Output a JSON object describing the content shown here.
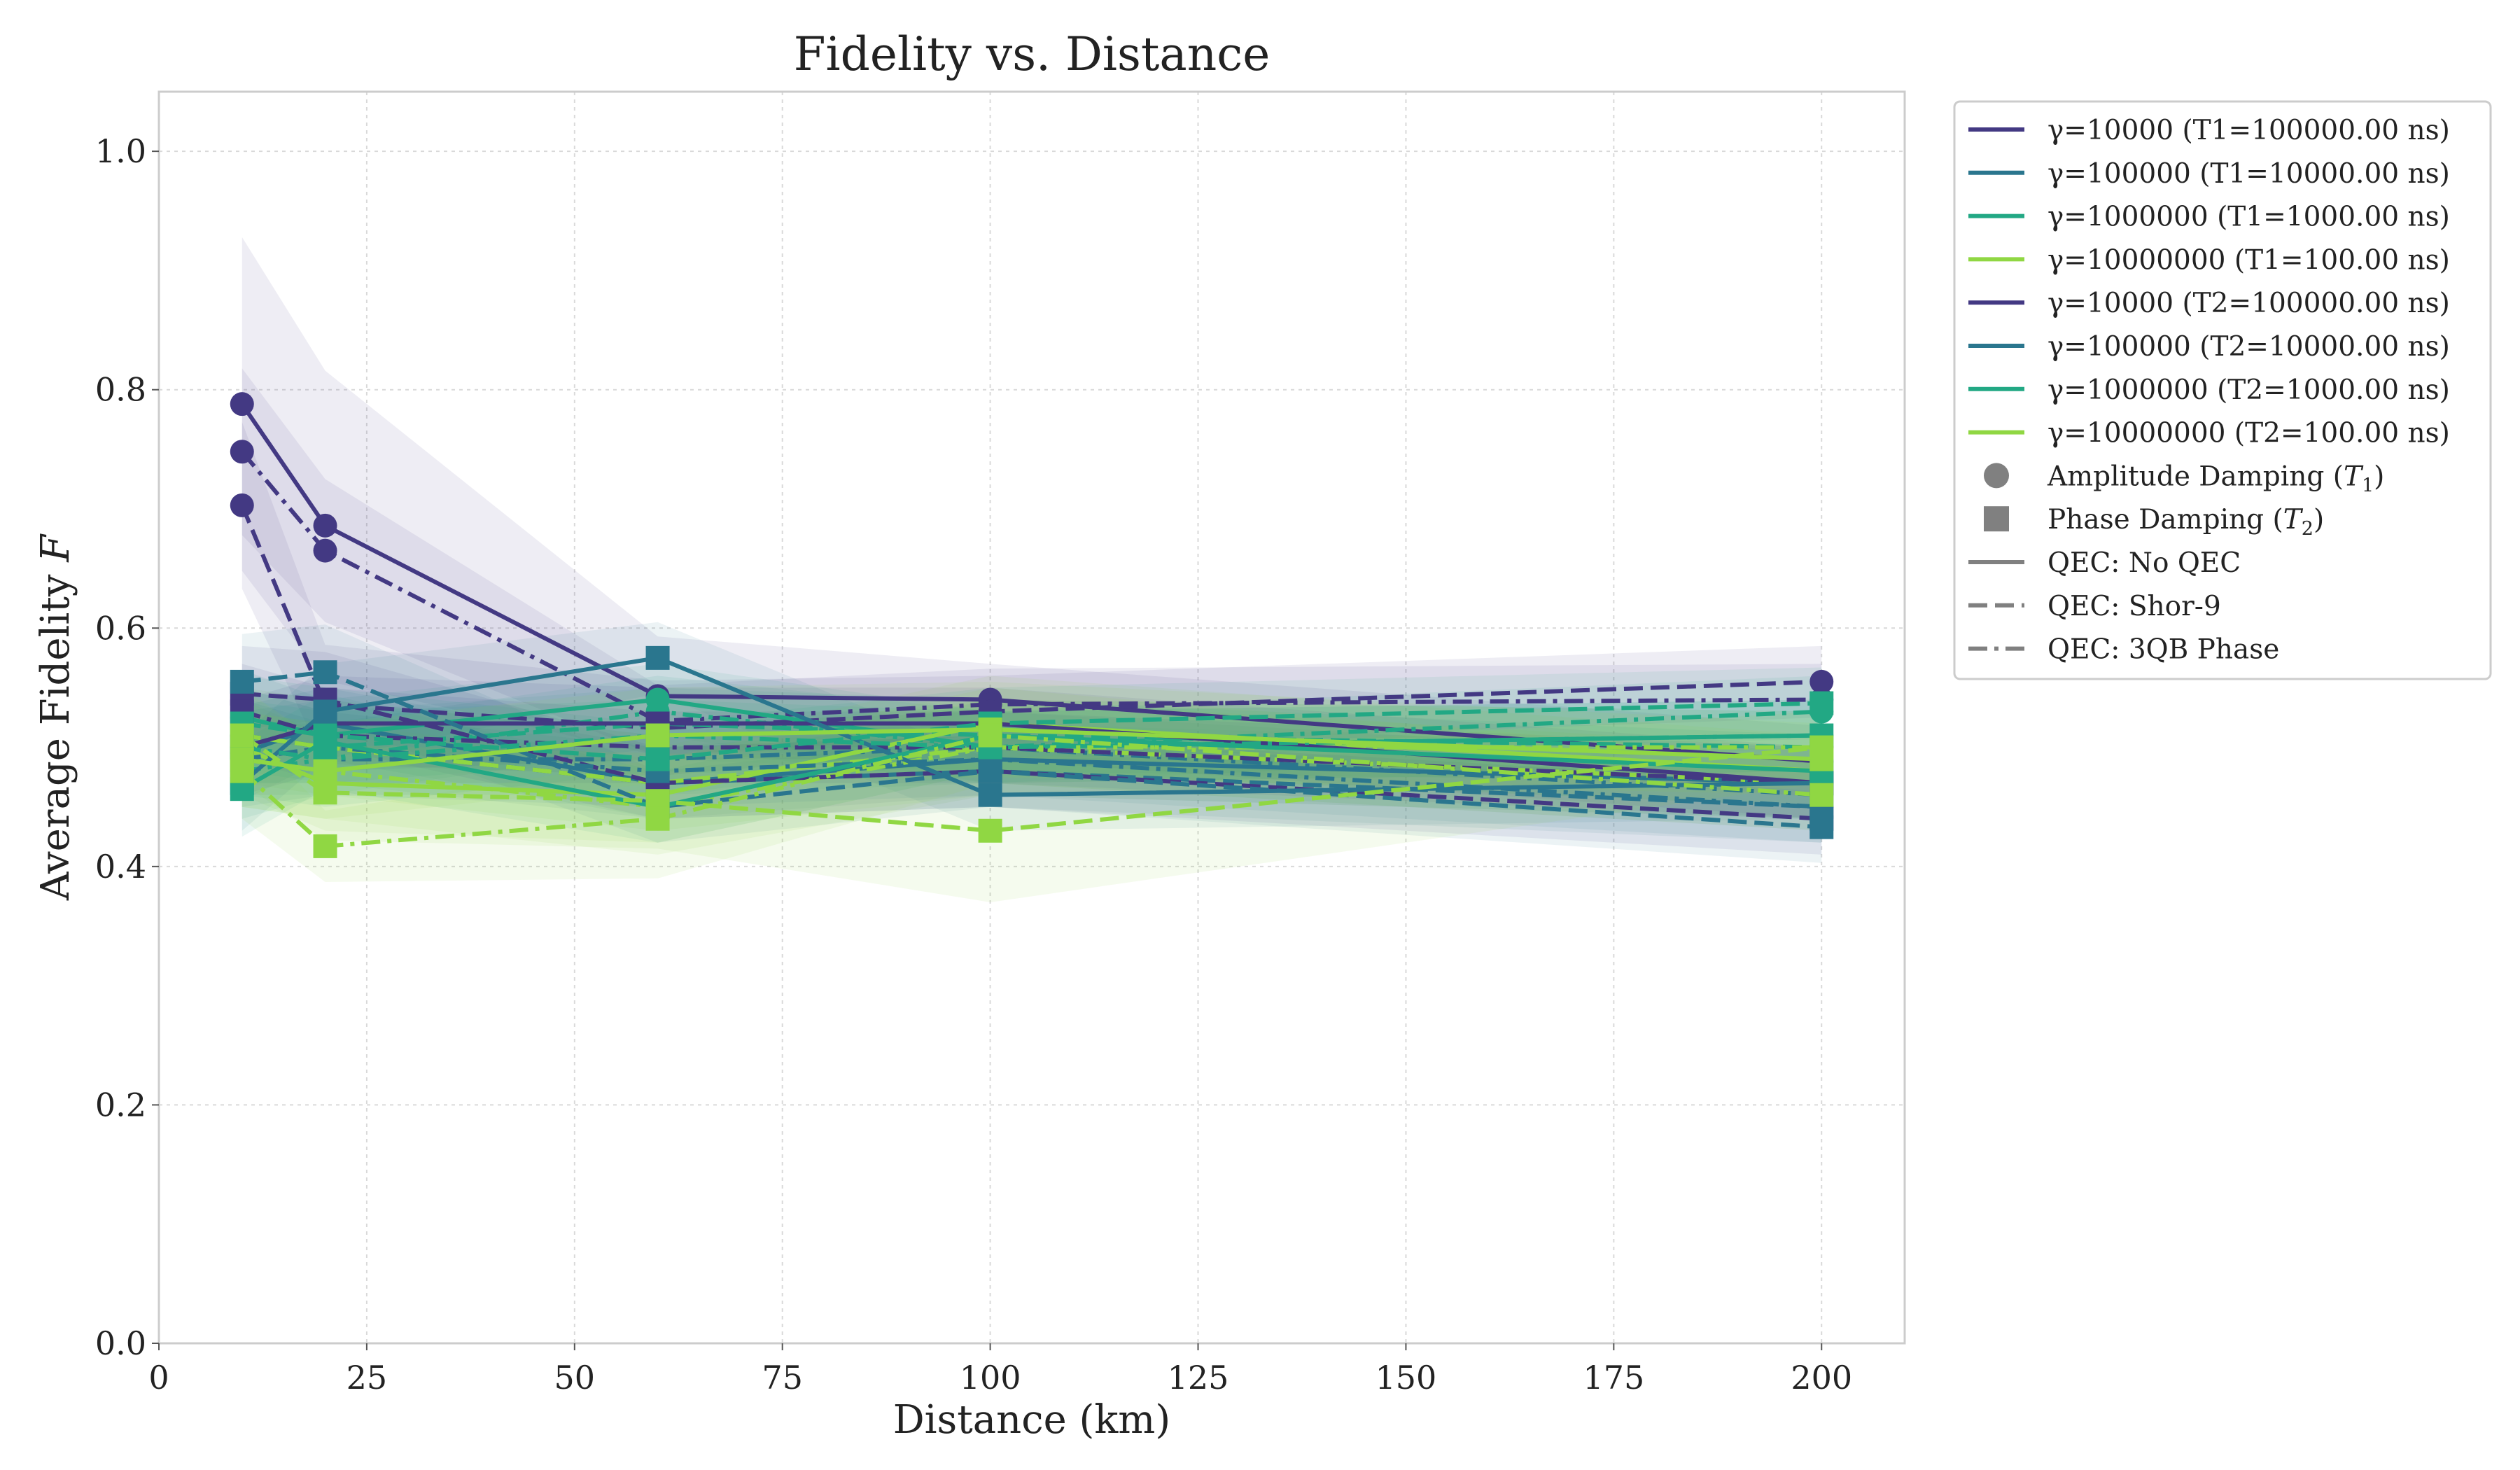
{
  "chart_data": {
    "type": "line",
    "title": "Fidelity vs. Distance",
    "xlabel": "Distance (km)",
    "ylabel_main": "Average Fidelity ",
    "ylabel_var": "F",
    "xlim": [
      0,
      210
    ],
    "ylim": [
      0.0,
      1.05
    ],
    "xticks": [
      0,
      25,
      50,
      75,
      100,
      125,
      150,
      175,
      200
    ],
    "xtick_labels": [
      "0",
      "25",
      "50",
      "75",
      "100",
      "125",
      "150",
      "175",
      "200"
    ],
    "yticks": [
      0.0,
      0.2,
      0.4,
      0.6,
      0.8,
      1.0
    ],
    "ytick_labels": [
      "0.0",
      "0.2",
      "0.4",
      "0.6",
      "0.8",
      "1.0"
    ],
    "grid": true,
    "legend_placement": "outside-upper-right",
    "x": [
      10,
      20,
      60,
      100,
      200
    ],
    "colors": {
      "gamma_10000": "#433983",
      "gamma_100000": "#2a768e",
      "gamma_1000000": "#22a884",
      "gamma_10000000": "#90d743",
      "legend_marker": "#808080"
    },
    "legend": [
      {
        "label": "γ=10000 (T1=100000.00 ns)",
        "kind": "line",
        "color": "gamma_10000"
      },
      {
        "label": "γ=100000 (T1=10000.00 ns)",
        "kind": "line",
        "color": "gamma_100000"
      },
      {
        "label": "γ=1000000 (T1=1000.00 ns)",
        "kind": "line",
        "color": "gamma_1000000"
      },
      {
        "label": "γ=10000000 (T1=100.00 ns)",
        "kind": "line",
        "color": "gamma_10000000"
      },
      {
        "label": "γ=10000 (T2=100000.00 ns)",
        "kind": "line",
        "color": "gamma_10000"
      },
      {
        "label": "γ=100000 (T2=10000.00 ns)",
        "kind": "line",
        "color": "gamma_100000"
      },
      {
        "label": "γ=1000000 (T2=1000.00 ns)",
        "kind": "line",
        "color": "gamma_1000000"
      },
      {
        "label": "γ=10000000 (T2=100.00 ns)",
        "kind": "line",
        "color": "gamma_10000000"
      },
      {
        "label": "Amplitude Damping (",
        "label_var": "T",
        "label_sub": "1",
        "label_end": ")",
        "kind": "circle"
      },
      {
        "label": "Phase Damping (",
        "label_var": "T",
        "label_sub": "2",
        "label_end": ")",
        "kind": "square"
      },
      {
        "label": "QEC: No QEC",
        "kind": "style",
        "dash": "solid"
      },
      {
        "label": "QEC: Shor-9",
        "kind": "style",
        "dash": "dashed"
      },
      {
        "label": "QEC: 3QB Phase",
        "kind": "style",
        "dash": "dashdot"
      }
    ],
    "series": [
      {
        "color": "gamma_10000",
        "marker": "circle",
        "dash": "solid",
        "values": [
          0.788,
          0.686,
          0.543,
          0.54,
          0.488
        ],
        "band": [
          0.14,
          0.13,
          0.05,
          0.03,
          0.03
        ]
      },
      {
        "color": "gamma_10000",
        "marker": "circle",
        "dash": "dashdot",
        "values": [
          0.748,
          0.665,
          0.522,
          0.536,
          0.54
        ],
        "band": [
          0.07,
          0.06,
          0.03,
          0.03,
          0.03
        ]
      },
      {
        "color": "gamma_10000",
        "marker": "circle",
        "dash": "dashed",
        "values": [
          0.703,
          0.536,
          0.516,
          0.53,
          0.555
        ],
        "band": [
          0.07,
          0.05,
          0.04,
          0.03,
          0.03
        ]
      },
      {
        "color": "gamma_100000",
        "marker": "circle",
        "dash": "solid",
        "values": [
          0.495,
          0.52,
          0.47,
          0.49,
          0.47
        ],
        "band": [
          0.04,
          0.03,
          0.03,
          0.03,
          0.03
        ]
      },
      {
        "color": "gamma_100000",
        "marker": "circle",
        "dash": "dashed",
        "values": [
          0.51,
          0.5,
          0.47,
          0.48,
          0.45
        ],
        "band": [
          0.04,
          0.03,
          0.03,
          0.03,
          0.03
        ]
      },
      {
        "color": "gamma_100000",
        "marker": "circle",
        "dash": "dashdot",
        "values": [
          0.5,
          0.49,
          0.49,
          0.5,
          0.46
        ],
        "band": [
          0.04,
          0.03,
          0.03,
          0.03,
          0.03
        ]
      },
      {
        "color": "gamma_1000000",
        "marker": "circle",
        "dash": "solid",
        "values": [
          0.525,
          0.51,
          0.54,
          0.5,
          0.51
        ],
        "band": [
          0.04,
          0.03,
          0.03,
          0.03,
          0.03
        ]
      },
      {
        "color": "gamma_1000000",
        "marker": "circle",
        "dash": "dashed",
        "values": [
          0.51,
          0.5,
          0.52,
          0.51,
          0.5
        ],
        "band": [
          0.04,
          0.03,
          0.03,
          0.03,
          0.03
        ]
      },
      {
        "color": "gamma_1000000",
        "marker": "circle",
        "dash": "dashdot",
        "values": [
          0.48,
          0.49,
          0.53,
          0.5,
          0.53
        ],
        "band": [
          0.04,
          0.03,
          0.03,
          0.03,
          0.03
        ]
      },
      {
        "color": "gamma_10000000",
        "marker": "circle",
        "dash": "solid",
        "values": [
          0.5,
          0.47,
          0.46,
          0.52,
          0.48
        ],
        "band": [
          0.04,
          0.04,
          0.04,
          0.04,
          0.03
        ]
      },
      {
        "color": "gamma_10000000",
        "marker": "circle",
        "dash": "dashed",
        "values": [
          0.51,
          0.5,
          0.47,
          0.5,
          0.47
        ],
        "band": [
          0.04,
          0.04,
          0.04,
          0.04,
          0.03
        ]
      },
      {
        "color": "gamma_10000000",
        "marker": "circle",
        "dash": "dashdot",
        "values": [
          0.49,
          0.48,
          0.45,
          0.5,
          0.5
        ],
        "band": [
          0.04,
          0.04,
          0.04,
          0.04,
          0.03
        ]
      },
      {
        "color": "gamma_10000",
        "marker": "square",
        "dash": "solid",
        "values": [
          0.5,
          0.52,
          0.52,
          0.52,
          0.47
        ],
        "band": [
          0.04,
          0.04,
          0.03,
          0.03,
          0.03
        ]
      },
      {
        "color": "gamma_10000",
        "marker": "square",
        "dash": "dashed",
        "values": [
          0.545,
          0.54,
          0.47,
          0.48,
          0.44
        ],
        "band": [
          0.04,
          0.04,
          0.03,
          0.03,
          0.03
        ]
      },
      {
        "color": "gamma_10000",
        "marker": "square",
        "dash": "dashdot",
        "values": [
          0.53,
          0.51,
          0.5,
          0.5,
          0.47
        ],
        "band": [
          0.04,
          0.04,
          0.03,
          0.03,
          0.03
        ]
      },
      {
        "color": "gamma_100000",
        "marker": "square",
        "dash": "solid",
        "values": [
          0.47,
          0.53,
          0.575,
          0.46,
          0.47
        ],
        "band": [
          0.04,
          0.04,
          0.03,
          0.03,
          0.03
        ]
      },
      {
        "color": "gamma_100000",
        "marker": "square",
        "dash": "dashed",
        "values": [
          0.555,
          0.563,
          0.45,
          0.48,
          0.433
        ],
        "band": [
          0.04,
          0.04,
          0.03,
          0.03,
          0.03
        ]
      },
      {
        "color": "gamma_100000",
        "marker": "square",
        "dash": "dashdot",
        "values": [
          0.49,
          0.5,
          0.48,
          0.49,
          0.45
        ],
        "band": [
          0.04,
          0.04,
          0.03,
          0.03,
          0.03
        ]
      },
      {
        "color": "gamma_1000000",
        "marker": "square",
        "dash": "solid",
        "values": [
          0.465,
          0.505,
          0.45,
          0.51,
          0.48
        ],
        "band": [
          0.04,
          0.04,
          0.03,
          0.03,
          0.03
        ]
      },
      {
        "color": "gamma_1000000",
        "marker": "square",
        "dash": "dashed",
        "values": [
          0.52,
          0.51,
          0.49,
          0.52,
          0.537
        ],
        "band": [
          0.04,
          0.04,
          0.03,
          0.03,
          0.03
        ]
      },
      {
        "color": "gamma_1000000",
        "marker": "square",
        "dash": "dashdot",
        "values": [
          0.5,
          0.49,
          0.51,
          0.5,
          0.51
        ],
        "band": [
          0.04,
          0.04,
          0.03,
          0.03,
          0.03
        ]
      },
      {
        "color": "gamma_10000000",
        "marker": "square",
        "dash": "solid",
        "values": [
          0.49,
          0.48,
          0.51,
          0.515,
          0.49
        ],
        "band": [
          0.04,
          0.04,
          0.04,
          0.04,
          0.03
        ]
      },
      {
        "color": "gamma_10000000",
        "marker": "square",
        "dash": "dashed",
        "values": [
          0.51,
          0.462,
          0.455,
          0.43,
          0.5
        ],
        "band": [
          0.04,
          0.04,
          0.04,
          0.06,
          0.03
        ]
      },
      {
        "color": "gamma_10000000",
        "marker": "square",
        "dash": "dashdot",
        "values": [
          0.48,
          0.417,
          0.44,
          0.51,
          0.46
        ],
        "band": [
          0.04,
          0.03,
          0.05,
          0.04,
          0.03
        ]
      }
    ]
  }
}
